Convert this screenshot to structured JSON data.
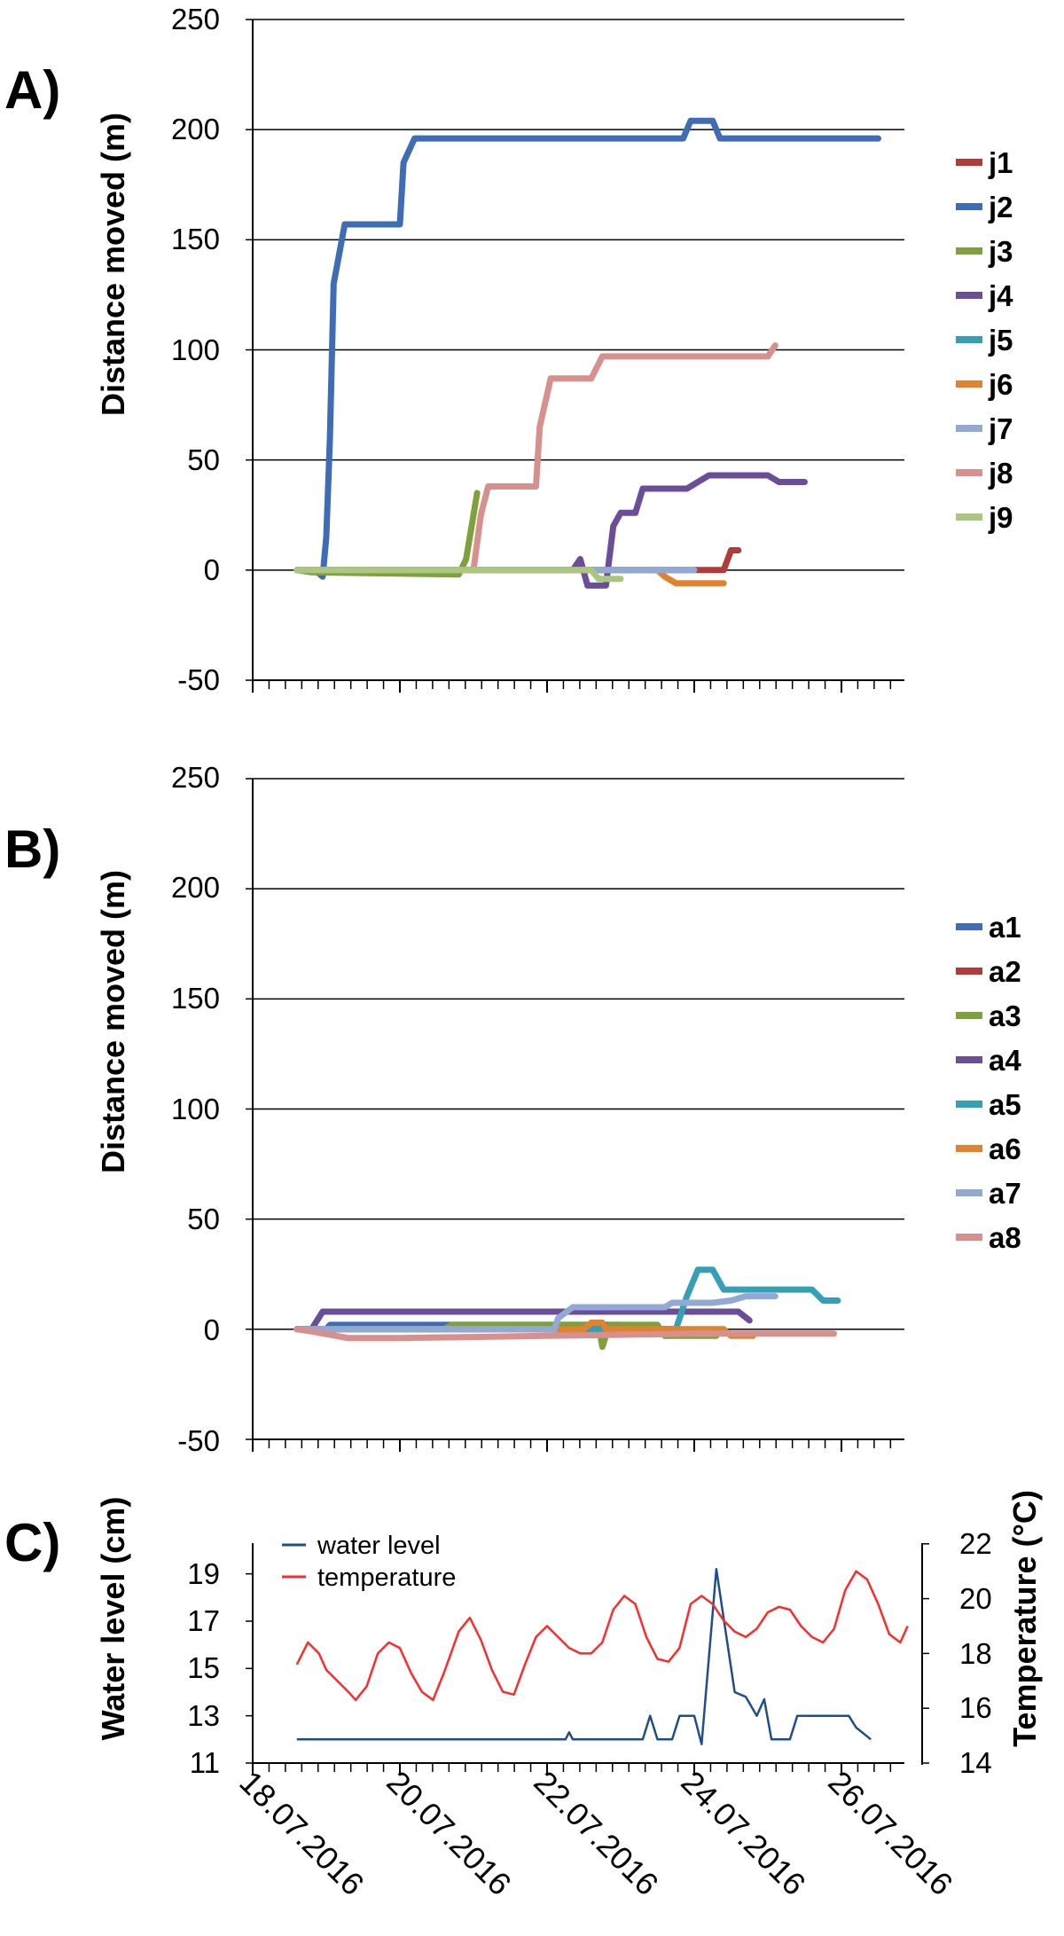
{
  "panels": [
    {
      "label": "A)",
      "ylabel": "Distance moved (m)",
      "yticks": [
        "250",
        "200",
        "150",
        "100",
        "50",
        "0",
        "-50"
      ]
    },
    {
      "label": "B)",
      "ylabel": "Distance moved (m)",
      "yticks": [
        "250",
        "200",
        "150",
        "100",
        "50",
        "0",
        "-50"
      ]
    },
    {
      "label": "C)",
      "ylabel": "Water level (cm)",
      "y2label": "Temperature (°C)",
      "yticks": [
        "19",
        "17",
        "15",
        "13",
        "11"
      ],
      "y2ticks": [
        "22",
        "20",
        "18",
        "16",
        "14"
      ]
    }
  ],
  "x_ticks": [
    "18.07.2016",
    "20.07.2016",
    "22.07.2016",
    "24.07.2016",
    "26.07.2016"
  ],
  "chart_data": [
    {
      "type": "line",
      "panel": "A)",
      "ylabel": "Distance moved (m)",
      "ylim": [
        -50,
        250
      ],
      "x_unit": "days from 18.07.2016",
      "grid": true,
      "legend": "right",
      "series": [
        {
          "name": "j1",
          "color": "#b23a3a",
          "points": [
            [
              0.6,
              0
            ],
            [
              6.4,
              0
            ],
            [
              6.5,
              9
            ],
            [
              6.6,
              9
            ]
          ]
        },
        {
          "name": "j2",
          "color": "#3f6db5",
          "points": [
            [
              0.6,
              0
            ],
            [
              0.85,
              0
            ],
            [
              0.95,
              -3
            ],
            [
              1.0,
              15
            ],
            [
              1.05,
              60
            ],
            [
              1.1,
              130
            ],
            [
              1.25,
              157
            ],
            [
              2.0,
              157
            ],
            [
              2.05,
              185
            ],
            [
              2.2,
              196
            ],
            [
              5.85,
              196
            ],
            [
              5.95,
              204
            ],
            [
              6.25,
              204
            ],
            [
              6.35,
              196
            ],
            [
              8.5,
              196
            ]
          ]
        },
        {
          "name": "j3",
          "color": "#7ea13c",
          "points": [
            [
              0.6,
              0
            ],
            [
              0.8,
              -1
            ],
            [
              2.8,
              -2
            ],
            [
              2.9,
              5
            ],
            [
              3.0,
              25
            ],
            [
              3.05,
              35
            ]
          ]
        },
        {
          "name": "j4",
          "color": "#6c4d9a",
          "points": [
            [
              0.6,
              0
            ],
            [
              4.35,
              0
            ],
            [
              4.45,
              5
            ],
            [
              4.55,
              -7
            ],
            [
              4.8,
              -7
            ],
            [
              4.9,
              20
            ],
            [
              5.0,
              26
            ],
            [
              5.2,
              26
            ],
            [
              5.3,
              37
            ],
            [
              5.9,
              37
            ],
            [
              6.05,
              40
            ],
            [
              6.2,
              43
            ],
            [
              7.0,
              43
            ],
            [
              7.15,
              40
            ],
            [
              7.5,
              40
            ]
          ]
        },
        {
          "name": "j5",
          "color": "#35a0b5",
          "points": [
            [
              0.6,
              0
            ],
            [
              5.9,
              0
            ]
          ]
        },
        {
          "name": "j6",
          "color": "#e0822e",
          "points": [
            [
              0.6,
              0
            ],
            [
              5.5,
              0
            ],
            [
              5.6,
              -3
            ],
            [
              5.75,
              -6
            ],
            [
              6.4,
              -6
            ]
          ]
        },
        {
          "name": "j7",
          "color": "#93a9d5",
          "points": [
            [
              0.6,
              0
            ],
            [
              6.0,
              0
            ]
          ]
        },
        {
          "name": "j8",
          "color": "#d8908e",
          "points": [
            [
              0.6,
              0
            ],
            [
              3.0,
              0
            ],
            [
              3.1,
              25
            ],
            [
              3.2,
              38
            ],
            [
              3.85,
              38
            ],
            [
              3.9,
              65
            ],
            [
              4.05,
              87
            ],
            [
              4.6,
              87
            ],
            [
              4.75,
              97
            ],
            [
              7.0,
              97
            ],
            [
              7.1,
              102
            ]
          ]
        },
        {
          "name": "j9",
          "color": "#a9c77e",
          "points": [
            [
              0.6,
              0
            ],
            [
              4.6,
              0
            ],
            [
              4.7,
              -4
            ],
            [
              5.0,
              -4
            ]
          ]
        }
      ]
    },
    {
      "type": "line",
      "panel": "B)",
      "ylabel": "Distance moved (m)",
      "ylim": [
        -50,
        250
      ],
      "x_unit": "days from 18.07.2016",
      "grid": true,
      "legend": "right",
      "series": [
        {
          "name": "a1",
          "color": "#3f6db5",
          "points": [
            [
              0.6,
              0
            ],
            [
              1.0,
              0
            ],
            [
              1.05,
              2
            ],
            [
              5.0,
              2
            ]
          ]
        },
        {
          "name": "a2",
          "color": "#b23a3a",
          "points": [
            [
              0.6,
              0
            ],
            [
              5.8,
              0
            ]
          ]
        },
        {
          "name": "a3",
          "color": "#7ea13c",
          "points": [
            [
              0.6,
              0
            ],
            [
              2.6,
              0
            ],
            [
              2.7,
              2
            ],
            [
              4.7,
              2
            ],
            [
              4.75,
              -8
            ],
            [
              4.85,
              2
            ],
            [
              5.5,
              2
            ],
            [
              5.6,
              -3
            ],
            [
              6.3,
              -3
            ]
          ]
        },
        {
          "name": "a4",
          "color": "#6c4d9a",
          "points": [
            [
              0.6,
              0
            ],
            [
              0.8,
              0
            ],
            [
              0.95,
              8
            ],
            [
              6.6,
              8
            ],
            [
              6.75,
              4
            ]
          ]
        },
        {
          "name": "a5",
          "color": "#35a0b5",
          "points": [
            [
              0.6,
              0
            ],
            [
              5.75,
              0
            ],
            [
              5.9,
              15
            ],
            [
              6.05,
              27
            ],
            [
              6.25,
              27
            ],
            [
              6.4,
              18
            ],
            [
              7.6,
              18
            ],
            [
              7.75,
              13
            ],
            [
              7.95,
              13
            ]
          ]
        },
        {
          "name": "a6",
          "color": "#e0822e",
          "points": [
            [
              0.6,
              0
            ],
            [
              4.5,
              0
            ],
            [
              4.6,
              3
            ],
            [
              4.75,
              3
            ],
            [
              4.8,
              0
            ],
            [
              6.4,
              0
            ],
            [
              6.5,
              -3
            ],
            [
              6.8,
              -3
            ]
          ]
        },
        {
          "name": "a7",
          "color": "#93a9d5",
          "points": [
            [
              0.6,
              0
            ],
            [
              4.1,
              0
            ],
            [
              4.15,
              5
            ],
            [
              4.35,
              10
            ],
            [
              5.6,
              10
            ],
            [
              5.7,
              12
            ],
            [
              6.25,
              12
            ],
            [
              6.5,
              13
            ],
            [
              6.7,
              15
            ],
            [
              7.1,
              15
            ]
          ]
        },
        {
          "name": "a8",
          "color": "#d8908e",
          "points": [
            [
              0.6,
              0
            ],
            [
              0.8,
              -1
            ],
            [
              1.3,
              -4
            ],
            [
              2.0,
              -4
            ],
            [
              4.0,
              -3
            ],
            [
              6.0,
              -2
            ],
            [
              7.9,
              -2
            ]
          ]
        }
      ]
    },
    {
      "type": "line",
      "panel": "C)",
      "ylabel": "Water level (cm)",
      "y2label": "Temperature (°C)",
      "ylim": [
        11,
        20
      ],
      "y2lim": [
        14,
        22
      ],
      "x_unit": "days from 18.07.2016",
      "grid": false,
      "legend": "top-left",
      "series": [
        {
          "name": "water level",
          "color": "#1f4e8c",
          "axis": "left",
          "points": [
            [
              0.6,
              12
            ],
            [
              4.25,
              12
            ],
            [
              4.3,
              12.3
            ],
            [
              4.35,
              12
            ],
            [
              5.3,
              12
            ],
            [
              5.4,
              13
            ],
            [
              5.5,
              12
            ],
            [
              5.7,
              12
            ],
            [
              5.8,
              13
            ],
            [
              6.0,
              13
            ],
            [
              6.1,
              11.8
            ],
            [
              6.3,
              19.2
            ],
            [
              6.55,
              14
            ],
            [
              6.7,
              13.8
            ],
            [
              6.85,
              13
            ],
            [
              6.95,
              13.7
            ],
            [
              7.05,
              12
            ],
            [
              7.3,
              12
            ],
            [
              7.4,
              13
            ],
            [
              8.1,
              13
            ],
            [
              8.2,
              12.5
            ],
            [
              8.4,
              12
            ]
          ]
        },
        {
          "name": "temperature",
          "color": "#ff2a2a",
          "axis": "right",
          "points": [
            [
              0.6,
              17.6
            ],
            [
              0.75,
              18.4
            ],
            [
              0.9,
              18.0
            ],
            [
              1.0,
              17.4
            ],
            [
              1.15,
              17.0
            ],
            [
              1.3,
              16.6
            ],
            [
              1.4,
              16.3
            ],
            [
              1.55,
              16.8
            ],
            [
              1.7,
              18.0
            ],
            [
              1.85,
              18.4
            ],
            [
              2.0,
              18.2
            ],
            [
              2.15,
              17.3
            ],
            [
              2.3,
              16.6
            ],
            [
              2.45,
              16.3
            ],
            [
              2.6,
              17.3
            ],
            [
              2.8,
              18.8
            ],
            [
              2.95,
              19.3
            ],
            [
              3.1,
              18.5
            ],
            [
              3.25,
              17.4
            ],
            [
              3.4,
              16.6
            ],
            [
              3.55,
              16.5
            ],
            [
              3.7,
              17.6
            ],
            [
              3.85,
              18.6
            ],
            [
              4.0,
              19.0
            ],
            [
              4.15,
              18.6
            ],
            [
              4.3,
              18.2
            ],
            [
              4.45,
              18.0
            ],
            [
              4.6,
              18.0
            ],
            [
              4.75,
              18.4
            ],
            [
              4.9,
              19.6
            ],
            [
              5.05,
              20.1
            ],
            [
              5.2,
              19.8
            ],
            [
              5.35,
              18.6
            ],
            [
              5.5,
              17.8
            ],
            [
              5.65,
              17.7
            ],
            [
              5.8,
              18.2
            ],
            [
              5.95,
              19.8
            ],
            [
              6.1,
              20.1
            ],
            [
              6.25,
              19.8
            ],
            [
              6.4,
              19.2
            ],
            [
              6.55,
              18.8
            ],
            [
              6.7,
              18.6
            ],
            [
              6.85,
              18.9
            ],
            [
              7.0,
              19.5
            ],
            [
              7.15,
              19.7
            ],
            [
              7.3,
              19.6
            ],
            [
              7.45,
              19.0
            ],
            [
              7.6,
              18.6
            ],
            [
              7.75,
              18.4
            ],
            [
              7.9,
              18.9
            ],
            [
              8.05,
              20.3
            ],
            [
              8.2,
              21.0
            ],
            [
              8.35,
              20.7
            ],
            [
              8.5,
              19.8
            ],
            [
              8.65,
              18.7
            ],
            [
              8.8,
              18.4
            ],
            [
              8.9,
              19.0
            ]
          ]
        }
      ]
    }
  ]
}
